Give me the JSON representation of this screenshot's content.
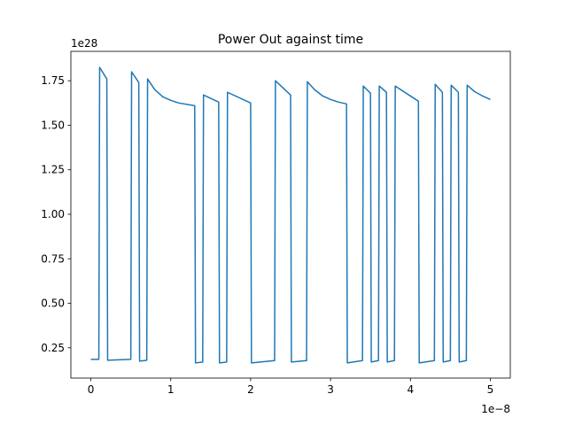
{
  "chart_data": {
    "type": "line",
    "title": "Power Out against time",
    "xlabel": "",
    "ylabel": "",
    "x_offset_text": "1e−8",
    "y_offset_text": "1e28",
    "x_tick_labels": [
      "0",
      "1",
      "2",
      "3",
      "4",
      "5"
    ],
    "x_ticks": [
      0,
      1,
      2,
      3,
      4,
      5
    ],
    "y_tick_labels": [
      "0.25",
      "0.50",
      "0.75",
      "1.00",
      "1.25",
      "1.50",
      "1.75"
    ],
    "y_ticks": [
      0.25,
      0.5,
      0.75,
      1.0,
      1.25,
      1.5,
      1.75
    ],
    "xlim": [
      -0.25,
      5.25
    ],
    "ylim": [
      0.08,
      1.915
    ],
    "x_scale": "1e-8",
    "y_scale": "1e28",
    "grid": false,
    "line_color": "#1f77b4",
    "series": [
      {
        "x": [
          0.0,
          0.1,
          0.11,
          0.2,
          0.21,
          0.5,
          0.51,
          0.6,
          0.61,
          0.7,
          0.71,
          0.8,
          0.9,
          1.0,
          1.1,
          1.3,
          1.31,
          1.4,
          1.41,
          1.6,
          1.61,
          1.7,
          1.71,
          2.0,
          2.01,
          2.3,
          2.31,
          2.5,
          2.51,
          2.7,
          2.71,
          2.8,
          2.9,
          3.0,
          3.1,
          3.2,
          3.21,
          3.4,
          3.41,
          3.5,
          3.51,
          3.6,
          3.61,
          3.7,
          3.71,
          3.8,
          3.81,
          4.1,
          4.11,
          4.3,
          4.31,
          4.4,
          4.41,
          4.5,
          4.51,
          4.6,
          4.61,
          4.7,
          4.71,
          4.8,
          4.9,
          5.0
        ],
        "y": [
          0.185,
          0.185,
          1.825,
          1.76,
          0.18,
          0.185,
          1.8,
          1.74,
          0.175,
          0.18,
          1.76,
          1.7,
          1.66,
          1.64,
          1.625,
          1.61,
          0.165,
          0.17,
          1.67,
          1.63,
          0.165,
          0.17,
          1.685,
          1.625,
          0.165,
          0.178,
          1.75,
          1.67,
          0.17,
          0.178,
          1.745,
          1.7,
          1.665,
          1.645,
          1.63,
          1.62,
          0.165,
          0.178,
          1.72,
          1.68,
          0.17,
          0.178,
          1.72,
          1.685,
          0.17,
          0.178,
          1.72,
          1.635,
          0.165,
          0.178,
          1.73,
          1.685,
          0.17,
          0.178,
          1.725,
          1.685,
          0.17,
          0.178,
          1.725,
          1.69,
          1.665,
          1.645
        ]
      }
    ]
  }
}
